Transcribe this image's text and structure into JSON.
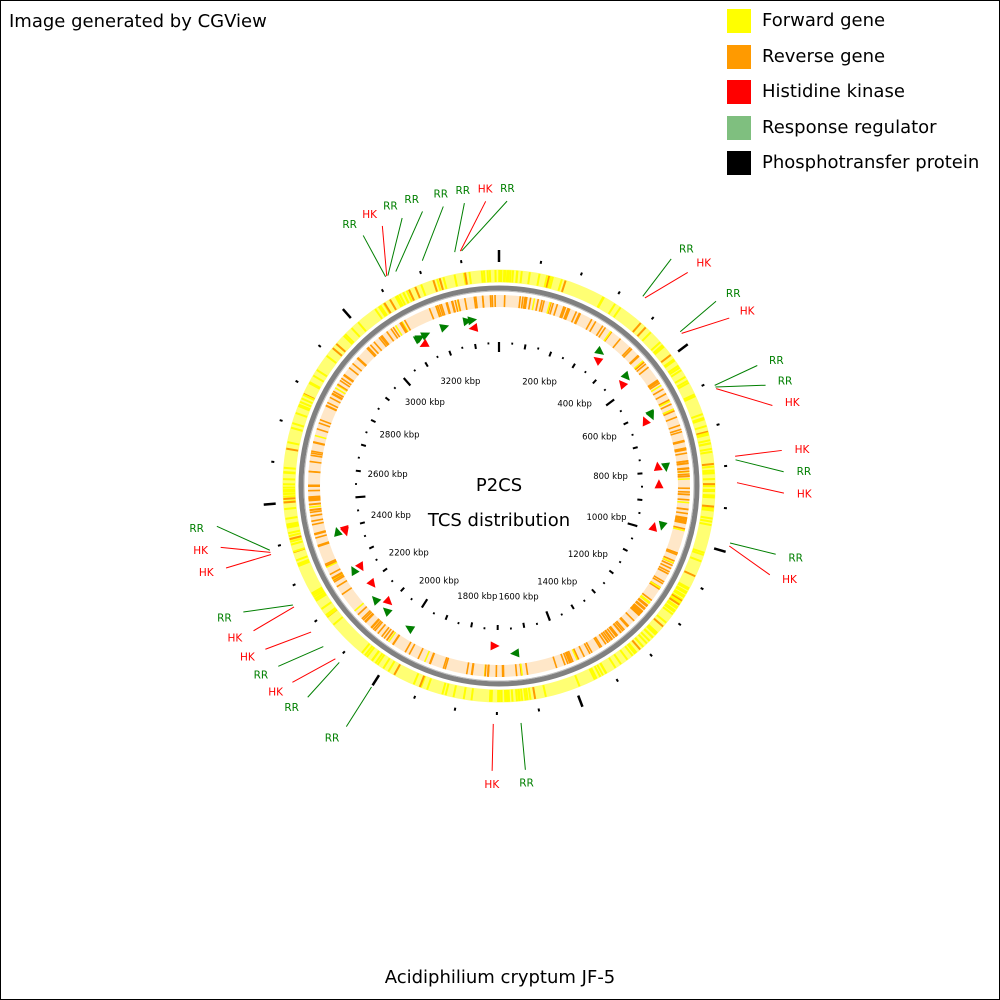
{
  "credit": "Image generated by CGView",
  "organism": "Acidiphilium cryptum JF-5",
  "center": {
    "line1": "P2CS",
    "line2": "TCS distribution"
  },
  "colors": {
    "forward": "#ffff00",
    "reverse": "#ff9a00",
    "hk": "#ff0000",
    "rr": "#007f00",
    "rr_legend": "#7fbf7f",
    "pt": "#000000",
    "backbone": "#808080"
  },
  "legend": [
    {
      "label": "Forward gene",
      "color": "#ffff00"
    },
    {
      "label": "Reverse gene",
      "color": "#ff9a00"
    },
    {
      "label": "Histidine kinase",
      "color": "#ff0000"
    },
    {
      "label": "Response regulator",
      "color": "#7fbf7f"
    },
    {
      "label": "Phosphotransfer protein",
      "color": "#000000"
    }
  ],
  "kbp_labels": [
    "200 kbp",
    "400 kbp",
    "600 kbp",
    "800 kbp",
    "1000 kbp",
    "1200 kbp",
    "1400 kbp",
    "1600 kbp",
    "1800 kbp",
    "2000 kbp",
    "2200 kbp",
    "2400 kbp",
    "2600 kbp",
    "2800 kbp",
    "3000 kbp",
    "3200 kbp"
  ],
  "tcs_features": [
    {
      "type": "RR",
      "label": "RR",
      "pos_kbp": 3305,
      "dir": "fwd"
    },
    {
      "type": "HK",
      "label": "HK",
      "pos_kbp": 3302,
      "dir": "rev"
    },
    {
      "type": "RR",
      "label": "RR",
      "pos_kbp": 3289,
      "dir": "fwd"
    },
    {
      "type": "RR",
      "label": "RR",
      "pos_kbp": 3213,
      "dir": "fwd"
    },
    {
      "type": "RR",
      "label": "RR",
      "pos_kbp": 3148,
      "dir": "fwd"
    },
    {
      "type": "RR",
      "label": "RR",
      "pos_kbp": 3128,
      "dir": "fwd"
    },
    {
      "type": "HK",
      "label": "HK",
      "pos_kbp": 3125,
      "dir": "rev"
    },
    {
      "type": "RR",
      "label": "RR",
      "pos_kbp": 3122,
      "dir": "fwd"
    },
    {
      "type": "RR",
      "label": "RR",
      "pos_kbp": 350,
      "dir": "fwd"
    },
    {
      "type": "HK",
      "label": "HK",
      "pos_kbp": 356,
      "dir": "rev"
    },
    {
      "type": "RR",
      "label": "RR",
      "pos_kbp": 467,
      "dir": "fwd"
    },
    {
      "type": "HK",
      "label": "HK",
      "pos_kbp": 472,
      "dir": "rev"
    },
    {
      "type": "RR",
      "label": "RR",
      "pos_kbp": 612,
      "dir": "fwd"
    },
    {
      "type": "RR",
      "label": "RR",
      "pos_kbp": 616,
      "dir": "fwd"
    },
    {
      "type": "HK",
      "label": "HK",
      "pos_kbp": 620,
      "dir": "rev"
    },
    {
      "type": "HK",
      "label": "HK",
      "pos_kbp": 780,
      "dir": "rev"
    },
    {
      "type": "RR",
      "label": "RR",
      "pos_kbp": 788,
      "dir": "fwd"
    },
    {
      "type": "HK",
      "label": "HK",
      "pos_kbp": 840,
      "dir": "rev"
    },
    {
      "type": "RR",
      "label": "RR",
      "pos_kbp": 978,
      "dir": "fwd"
    },
    {
      "type": "HK",
      "label": "HK",
      "pos_kbp": 985,
      "dir": "rev"
    },
    {
      "type": "HK",
      "label": "HK",
      "pos_kbp": 1708,
      "dir": "rev"
    },
    {
      "type": "RR",
      "label": "RR",
      "pos_kbp": 1645,
      "dir": "fwd"
    },
    {
      "type": "RR",
      "label": "RR",
      "pos_kbp": 2092,
      "dir": "fwd"
    },
    {
      "type": "HK",
      "label": "HK",
      "pos_kbp": 2186,
      "dir": "rev"
    },
    {
      "type": "RR",
      "label": "RR",
      "pos_kbp": 2143,
      "dir": "fwd"
    },
    {
      "type": "HK",
      "label": "HK",
      "pos_kbp": 2255,
      "dir": "rev"
    },
    {
      "type": "RR",
      "label": "RR",
      "pos_kbp": 2260,
      "dir": "fwd"
    },
    {
      "type": "HK",
      "label": "HK",
      "pos_kbp": 2390,
      "dir": "rev"
    },
    {
      "type": "HK",
      "label": "HK",
      "pos_kbp": 2385,
      "dir": "rev"
    },
    {
      "type": "RR",
      "label": "RR",
      "pos_kbp": 2395,
      "dir": "fwd"
    },
    {
      "type": "HK",
      "label": "HK",
      "pos_kbp": 2104,
      "dir": "rev"
    },
    {
      "type": "RR",
      "label": "RR",
      "pos_kbp": 2000,
      "dir": "fwd"
    }
  ]
}
